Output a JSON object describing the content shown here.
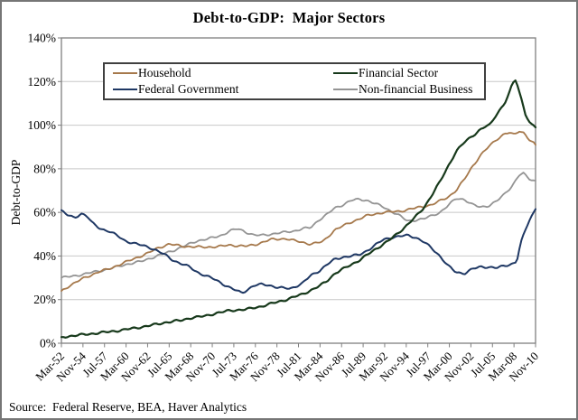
{
  "title": "Debt-to-GDP:  Major Sectors",
  "source": "Source:  Federal Reserve, BEA, Haver Analytics",
  "colors": {
    "grid": "#C8C8C8",
    "plot_border": "#7F7F7F",
    "figure_border": "#767676",
    "text": "#000000",
    "legend_border": "#404040"
  },
  "chart_data": {
    "type": "line",
    "title": "Debt-to-GDP:  Major Sectors",
    "xlabel": "",
    "ylabel": "Debt-to-GDP",
    "ylim": [
      0,
      140
    ],
    "xlim": [
      1952.167,
      2010.833
    ],
    "grid": "horizontal",
    "legend_position": "top-inside",
    "ytick_values": [
      0,
      20,
      40,
      60,
      80,
      100,
      120,
      140
    ],
    "ytick_labels": [
      "0%",
      "20%",
      "40%",
      "60%",
      "80%",
      "100%",
      "120%",
      "140%"
    ],
    "xtick_values": [
      1952.167,
      1954.833,
      1957.5,
      1960.167,
      1962.833,
      1965.5,
      1968.167,
      1970.833,
      1973.5,
      1976.167,
      1978.833,
      1981.5,
      1984.167,
      1986.833,
      1989.5,
      1992.167,
      1994.833,
      1997.5,
      2000.167,
      2002.833,
      2005.5,
      2008.167,
      2010.833
    ],
    "xtick_labels": [
      "Mar-52",
      "Nov-54",
      "Jul-57",
      "Mar-60",
      "Nov-62",
      "Jul-65",
      "Mar-68",
      "Nov-70",
      "Jul-73",
      "Mar-76",
      "Nov-78",
      "Jul-81",
      "Mar-84",
      "Nov-86",
      "Jul-89",
      "Mar-92",
      "Nov-94",
      "Jul-97",
      "Mar-00",
      "Nov-02",
      "Jul-05",
      "Mar-08",
      "Nov-10"
    ],
    "series": [
      {
        "name": "Non-financial Business",
        "color": "#949494",
        "width": 1.8,
        "points": [
          [
            1952.17,
            30
          ],
          [
            1954,
            31
          ],
          [
            1956,
            32.5
          ],
          [
            1958,
            34
          ],
          [
            1960,
            36
          ],
          [
            1962,
            37.5
          ],
          [
            1964,
            40
          ],
          [
            1966,
            42.5
          ],
          [
            1967,
            44
          ],
          [
            1968,
            45.5
          ],
          [
            1969,
            47
          ],
          [
            1970.5,
            48
          ],
          [
            1972,
            49.5
          ],
          [
            1973,
            51.5
          ],
          [
            1974,
            52.5
          ],
          [
            1975,
            51
          ],
          [
            1976,
            49.5
          ],
          [
            1977,
            49.5
          ],
          [
            1978,
            50
          ],
          [
            1979,
            50.5
          ],
          [
            1980,
            51
          ],
          [
            1981,
            51.5
          ],
          [
            1982,
            52.5
          ],
          [
            1983,
            53
          ],
          [
            1984,
            56.5
          ],
          [
            1985,
            59
          ],
          [
            1986,
            62
          ],
          [
            1987,
            63.5
          ],
          [
            1988,
            65.5
          ],
          [
            1989,
            66
          ],
          [
            1990,
            65.5
          ],
          [
            1991,
            64
          ],
          [
            1992,
            62.5
          ],
          [
            1993,
            60.5
          ],
          [
            1994,
            58.5
          ],
          [
            1995,
            56
          ],
          [
            1996,
            56.5
          ],
          [
            1997,
            57
          ],
          [
            1998,
            58.5
          ],
          [
            1999,
            60
          ],
          [
            2000,
            63
          ],
          [
            2001,
            66.5
          ],
          [
            2002,
            66
          ],
          [
            2003,
            63.5
          ],
          [
            2004,
            62.5
          ],
          [
            2005,
            63
          ],
          [
            2006,
            65
          ],
          [
            2007,
            68.5
          ],
          [
            2008,
            72.5
          ],
          [
            2008.8,
            77
          ],
          [
            2009.3,
            78
          ],
          [
            2010,
            75.5
          ],
          [
            2010.83,
            74.5
          ]
        ]
      },
      {
        "name": "Household",
        "color": "#A6794C",
        "width": 1.8,
        "points": [
          [
            1952.17,
            24
          ],
          [
            1953,
            26
          ],
          [
            1955,
            30
          ],
          [
            1957,
            33
          ],
          [
            1958,
            34
          ],
          [
            1960,
            37
          ],
          [
            1961,
            38.5
          ],
          [
            1963,
            41.5
          ],
          [
            1964,
            43.5
          ],
          [
            1965.5,
            45.5
          ],
          [
            1967,
            44.5
          ],
          [
            1970,
            44
          ],
          [
            1972,
            44.5
          ],
          [
            1973,
            45
          ],
          [
            1975,
            44.5
          ],
          [
            1976,
            45
          ],
          [
            1978,
            47.5
          ],
          [
            1980,
            48
          ],
          [
            1981,
            47
          ],
          [
            1983,
            45.5
          ],
          [
            1984.5,
            46.5
          ],
          [
            1986,
            52
          ],
          [
            1988,
            55.5
          ],
          [
            1990,
            58.5
          ],
          [
            1992,
            60
          ],
          [
            1994,
            60.5
          ],
          [
            1996,
            62
          ],
          [
            1998,
            63.5
          ],
          [
            2000,
            67
          ],
          [
            2001,
            70
          ],
          [
            2002,
            75
          ],
          [
            2003,
            81
          ],
          [
            2004,
            86
          ],
          [
            2005,
            90
          ],
          [
            2006,
            93.5
          ],
          [
            2007,
            96
          ],
          [
            2007.6,
            96.5
          ],
          [
            2008.2,
            95.5
          ],
          [
            2008.8,
            97.5
          ],
          [
            2009.4,
            96.5
          ],
          [
            2010,
            93.5
          ],
          [
            2010.83,
            91
          ]
        ]
      },
      {
        "name": "Federal Government",
        "color": "#1F3864",
        "width": 2,
        "points": [
          [
            1952.17,
            61
          ],
          [
            1953,
            58.5
          ],
          [
            1953.8,
            57.5
          ],
          [
            1954.6,
            59.5
          ],
          [
            1955.3,
            58.5
          ],
          [
            1956,
            55
          ],
          [
            1957,
            52.5
          ],
          [
            1958,
            51.5
          ],
          [
            1959,
            49.5
          ],
          [
            1960,
            47
          ],
          [
            1961,
            46
          ],
          [
            1962,
            45
          ],
          [
            1963,
            44
          ],
          [
            1964,
            42.5
          ],
          [
            1965,
            40.5
          ],
          [
            1966,
            38
          ],
          [
            1967,
            36.5
          ],
          [
            1968,
            35
          ],
          [
            1969,
            32.5
          ],
          [
            1970,
            31
          ],
          [
            1971,
            29.5
          ],
          [
            1972,
            27.5
          ],
          [
            1973,
            25.5
          ],
          [
            1974.5,
            23
          ],
          [
            1976,
            26.5
          ],
          [
            1977,
            27
          ],
          [
            1978,
            26.5
          ],
          [
            1979,
            25.5
          ],
          [
            1980.5,
            25
          ],
          [
            1982,
            27.5
          ],
          [
            1983,
            31
          ],
          [
            1984,
            33
          ],
          [
            1985,
            36
          ],
          [
            1986,
            38.5
          ],
          [
            1987,
            39.5
          ],
          [
            1988,
            40
          ],
          [
            1989,
            40.5
          ],
          [
            1990,
            42.5
          ],
          [
            1991,
            45
          ],
          [
            1992,
            47.5
          ],
          [
            1993,
            48.5
          ],
          [
            1994,
            49
          ],
          [
            1995,
            49.5
          ],
          [
            1996,
            48.5
          ],
          [
            1997,
            46.5
          ],
          [
            1998,
            43.5
          ],
          [
            1999,
            40
          ],
          [
            2000,
            35.5
          ],
          [
            2001,
            32.5
          ],
          [
            2002,
            32
          ],
          [
            2003,
            34
          ],
          [
            2004,
            35
          ],
          [
            2005,
            35
          ],
          [
            2006,
            34.5
          ],
          [
            2007,
            35.5
          ],
          [
            2008,
            36.5
          ],
          [
            2008.5,
            37.5
          ],
          [
            2009,
            46
          ],
          [
            2009.5,
            51
          ],
          [
            2010,
            56
          ],
          [
            2010.83,
            61.5
          ]
        ]
      },
      {
        "name": "Financial Sector",
        "color": "#17391B",
        "width": 2.2,
        "points": [
          [
            1952.17,
            2.8
          ],
          [
            1955,
            4
          ],
          [
            1958,
            5.2
          ],
          [
            1960,
            6.2
          ],
          [
            1963,
            8
          ],
          [
            1965,
            9.5
          ],
          [
            1967,
            10.5
          ],
          [
            1968,
            11.5
          ],
          [
            1970,
            12.5
          ],
          [
            1971,
            13.5
          ],
          [
            1973,
            15
          ],
          [
            1975,
            15.5
          ],
          [
            1977,
            17
          ],
          [
            1979,
            19
          ],
          [
            1980,
            20
          ],
          [
            1982,
            22.5
          ],
          [
            1984,
            26
          ],
          [
            1985,
            28.5
          ],
          [
            1986,
            32
          ],
          [
            1987,
            34
          ],
          [
            1988,
            36
          ],
          [
            1989,
            38
          ],
          [
            1990,
            40.5
          ],
          [
            1991,
            43
          ],
          [
            1992,
            45.5
          ],
          [
            1993,
            48
          ],
          [
            1994,
            51
          ],
          [
            1995,
            54.5
          ],
          [
            1996,
            58
          ],
          [
            1997,
            62
          ],
          [
            1998,
            68
          ],
          [
            1999,
            74
          ],
          [
            2000,
            81
          ],
          [
            2001,
            88
          ],
          [
            2002,
            92
          ],
          [
            2003,
            95
          ],
          [
            2004,
            98
          ],
          [
            2004.7,
            99.5
          ],
          [
            2005.2,
            100
          ],
          [
            2006,
            105
          ],
          [
            2007,
            110
          ],
          [
            2007.5,
            114
          ],
          [
            2008,
            119
          ],
          [
            2008.4,
            121
          ],
          [
            2009,
            113
          ],
          [
            2009.6,
            105
          ],
          [
            2010.2,
            100.5
          ],
          [
            2010.83,
            99
          ]
        ]
      }
    ]
  }
}
